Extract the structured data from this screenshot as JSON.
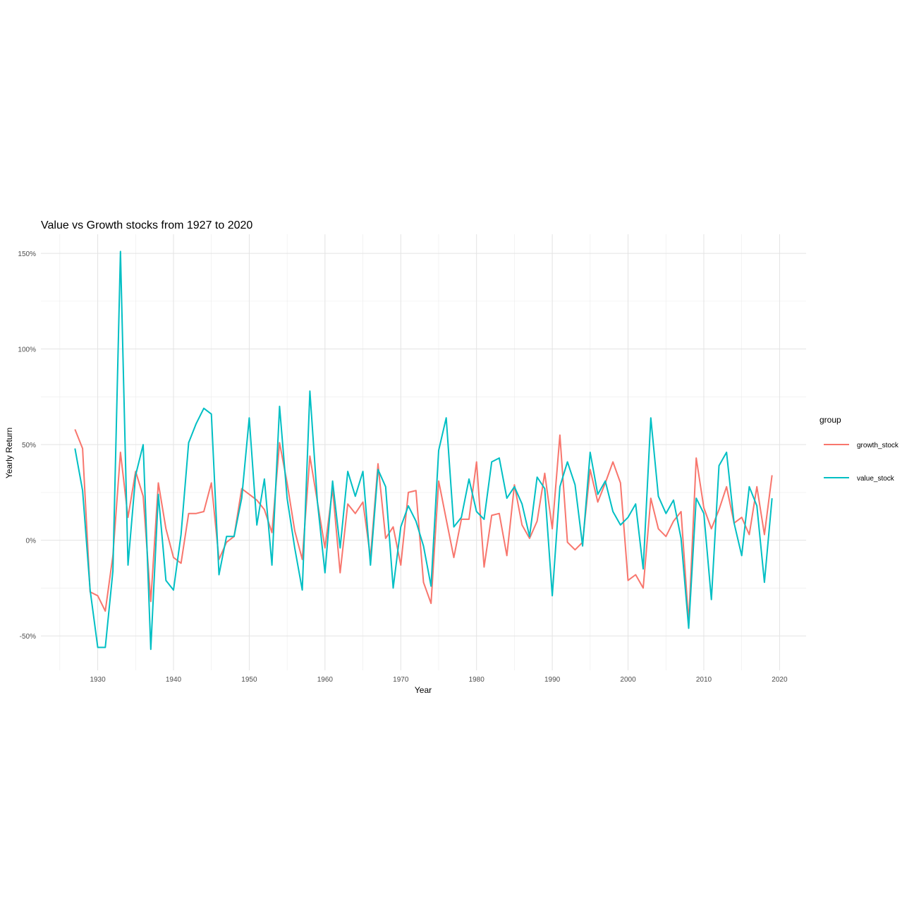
{
  "chart_data": {
    "type": "line",
    "title": "Value vs Growth stocks from 1927 to 2020",
    "xlabel": "Year",
    "ylabel": "Yearly Return",
    "xlim": [
      1922.5,
      2023.5
    ],
    "ylim": [
      -0.68,
      1.6
    ],
    "x_ticks": [
      1930,
      1940,
      1950,
      1960,
      1970,
      1980,
      1990,
      2000,
      2010,
      2020
    ],
    "y_ticks": [
      -0.5,
      0,
      0.5,
      1.0,
      1.5
    ],
    "y_tick_labels": [
      "-50%",
      "0%",
      "50%",
      "100%",
      "150%"
    ],
    "grid": true,
    "legend": {
      "title": "group",
      "position": "right"
    },
    "x": [
      1927,
      1928,
      1929,
      1930,
      1931,
      1932,
      1933,
      1934,
      1935,
      1936,
      1937,
      1938,
      1939,
      1940,
      1941,
      1942,
      1943,
      1944,
      1945,
      1946,
      1947,
      1948,
      1949,
      1950,
      1951,
      1952,
      1953,
      1954,
      1955,
      1956,
      1957,
      1958,
      1959,
      1960,
      1961,
      1962,
      1963,
      1964,
      1965,
      1966,
      1967,
      1968,
      1969,
      1970,
      1971,
      1972,
      1973,
      1974,
      1975,
      1976,
      1977,
      1978,
      1979,
      1980,
      1981,
      1982,
      1983,
      1984,
      1985,
      1986,
      1987,
      1988,
      1989,
      1990,
      1991,
      1992,
      1993,
      1994,
      1995,
      1996,
      1997,
      1998,
      1999,
      2000,
      2001,
      2002,
      2003,
      2004,
      2005,
      2006,
      2007,
      2008,
      2009,
      2010,
      2011,
      2012,
      2013,
      2014,
      2015,
      2016,
      2017,
      2018,
      2019
    ],
    "series": [
      {
        "name": "growth_stock",
        "color": "#F8766D",
        "values": [
          0.58,
          0.48,
          -0.27,
          -0.29,
          -0.37,
          -0.08,
          0.46,
          0.12,
          0.36,
          0.23,
          -0.32,
          0.3,
          0.06,
          -0.09,
          -0.12,
          0.14,
          0.14,
          0.15,
          0.3,
          -0.1,
          -0.01,
          0.02,
          0.27,
          0.24,
          0.21,
          0.16,
          0.04,
          0.51,
          0.3,
          0.05,
          -0.1,
          0.44,
          0.2,
          -0.04,
          0.27,
          -0.17,
          0.19,
          0.14,
          0.2,
          -0.09,
          0.4,
          0.01,
          0.07,
          -0.13,
          0.25,
          0.26,
          -0.22,
          -0.33,
          0.31,
          0.11,
          -0.09,
          0.11,
          0.11,
          0.41,
          -0.14,
          0.13,
          0.14,
          -0.08,
          0.29,
          0.08,
          0.01,
          0.1,
          0.35,
          0.06,
          0.55,
          -0.01,
          -0.05,
          -0.01,
          0.37,
          0.2,
          0.3,
          0.41,
          0.3,
          -0.21,
          -0.18,
          -0.25,
          0.22,
          0.06,
          0.02,
          0.1,
          0.15,
          -0.43,
          0.43,
          0.17,
          0.06,
          0.16,
          0.28,
          0.09,
          0.12,
          0.03,
          0.28,
          0.03,
          0.34
        ]
      },
      {
        "name": "value_stock",
        "color": "#00BFC4",
        "values": [
          0.48,
          0.26,
          -0.26,
          -0.56,
          -0.56,
          -0.16,
          1.51,
          -0.13,
          0.34,
          0.5,
          -0.57,
          0.24,
          -0.21,
          -0.26,
          0.03,
          0.51,
          0.61,
          0.69,
          0.66,
          -0.18,
          0.02,
          0.02,
          0.22,
          0.64,
          0.08,
          0.32,
          -0.13,
          0.7,
          0.22,
          -0.04,
          -0.26,
          0.78,
          0.2,
          -0.17,
          0.31,
          -0.04,
          0.36,
          0.23,
          0.36,
          -0.13,
          0.37,
          0.28,
          -0.25,
          0.07,
          0.18,
          0.1,
          -0.03,
          -0.24,
          0.47,
          0.64,
          0.07,
          0.12,
          0.32,
          0.15,
          0.11,
          0.41,
          0.43,
          0.22,
          0.28,
          0.19,
          0.02,
          0.33,
          0.27,
          -0.29,
          0.28,
          0.41,
          0.29,
          -0.03,
          0.46,
          0.24,
          0.31,
          0.15,
          0.08,
          0.12,
          0.19,
          -0.15,
          0.64,
          0.23,
          0.14,
          0.21,
          0.01,
          -0.46,
          0.22,
          0.14,
          -0.31,
          0.39,
          0.46,
          0.09,
          -0.08,
          0.28,
          0.18,
          -0.22,
          0.22
        ]
      }
    ]
  }
}
